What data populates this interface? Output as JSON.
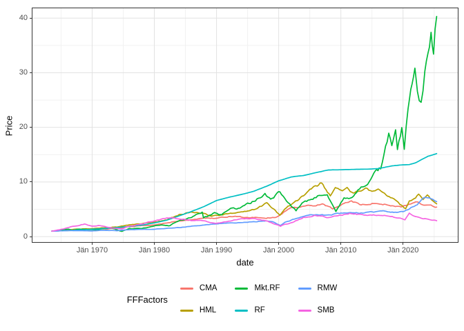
{
  "figure": {
    "background": "#ffffff",
    "panel_border_color": "#333333",
    "grid_major_color": "#e2e2e2",
    "grid_minor_color": "#f1f1f1",
    "tick_label_color": "#4d4d4d"
  },
  "chart_data": {
    "type": "line",
    "title": "",
    "xlabel": "date",
    "ylabel": "Price",
    "legend_title": "FFFactors",
    "legend_position": "bottom",
    "grid": true,
    "x_axis": {
      "tick_labels": [
        "Jän 1970",
        "Jän 1980",
        "Jän 1990",
        "Jän 2000",
        "Jän 2010",
        "Jän 2020"
      ],
      "tick_years": [
        1970,
        1980,
        1990,
        2000,
        2010,
        2020
      ],
      "minor_years": [
        1965,
        1975,
        1985,
        1995,
        2005,
        2015,
        2025
      ],
      "lim": [
        1960.4,
        2028.8
      ]
    },
    "y_axis": {
      "tick_labels": [
        "0",
        "10",
        "20",
        "30",
        "40"
      ],
      "tick_values": [
        0,
        10,
        20,
        30,
        40
      ],
      "minor_values": [
        5,
        15,
        25,
        35
      ],
      "lim": [
        -1.0,
        41.8
      ]
    },
    "series": [
      {
        "name": "CMA",
        "color": "#F8766D",
        "volatility": 0.02,
        "points": [
          [
            1963.5,
            1.0
          ],
          [
            1965,
            1.05
          ],
          [
            1966,
            1.1
          ],
          [
            1968,
            1.3
          ],
          [
            1970,
            1.3
          ],
          [
            1972,
            1.4
          ],
          [
            1974,
            1.5
          ],
          [
            1976,
            1.8
          ],
          [
            1978,
            2.0
          ],
          [
            1980,
            2.1
          ],
          [
            1982,
            2.5
          ],
          [
            1984,
            2.9
          ],
          [
            1986,
            3.1
          ],
          [
            1988,
            3.4
          ],
          [
            1990,
            3.3
          ],
          [
            1992,
            3.7
          ],
          [
            1994,
            3.6
          ],
          [
            1996,
            3.5
          ],
          [
            1998,
            3.4
          ],
          [
            1999.5,
            3.5
          ],
          [
            2000.5,
            4.2
          ],
          [
            2001.5,
            5.0
          ],
          [
            2002.5,
            5.4
          ],
          [
            2004,
            5.5
          ],
          [
            2006,
            5.7
          ],
          [
            2007.3,
            5.9
          ],
          [
            2008.7,
            5.1
          ],
          [
            2010,
            5.9
          ],
          [
            2011.7,
            6.5
          ],
          [
            2013,
            5.9
          ],
          [
            2014.5,
            6.0
          ],
          [
            2016,
            6.1
          ],
          [
            2018,
            5.7
          ],
          [
            2019.7,
            5.3
          ],
          [
            2021,
            5.9
          ],
          [
            2022.3,
            6.3
          ],
          [
            2023.3,
            5.6
          ],
          [
            2024,
            5.8
          ],
          [
            2025.4,
            5.4
          ]
        ]
      },
      {
        "name": "HML",
        "color": "#B79F00",
        "volatility": 0.022,
        "points": [
          [
            1963.5,
            1.0
          ],
          [
            1965,
            1.15
          ],
          [
            1966,
            1.25
          ],
          [
            1968,
            1.35
          ],
          [
            1970,
            1.45
          ],
          [
            1972,
            1.65
          ],
          [
            1974,
            1.75
          ],
          [
            1976,
            2.15
          ],
          [
            1978,
            2.35
          ],
          [
            1980,
            2.7
          ],
          [
            1982,
            3.0
          ],
          [
            1984,
            4.0
          ],
          [
            1986,
            4.5
          ],
          [
            1988,
            4.2
          ],
          [
            1989.2,
            3.7
          ],
          [
            1991,
            4.0
          ],
          [
            1993,
            4.3
          ],
          [
            1995,
            4.7
          ],
          [
            1996.5,
            5.1
          ],
          [
            1998.1,
            6.2
          ],
          [
            1999.2,
            5.0
          ],
          [
            2000.2,
            3.9
          ],
          [
            2001.5,
            5.6
          ],
          [
            2003,
            6.6
          ],
          [
            2005,
            8.5
          ],
          [
            2006.9,
            9.8
          ],
          [
            2008.3,
            7.6
          ],
          [
            2009.1,
            8.8
          ],
          [
            2010,
            8.3
          ],
          [
            2011,
            8.7
          ],
          [
            2012,
            7.8
          ],
          [
            2013,
            8.4
          ],
          [
            2014,
            8.7
          ],
          [
            2015,
            8.1
          ],
          [
            2016,
            8.4
          ],
          [
            2017,
            8.0
          ],
          [
            2018,
            7.3
          ],
          [
            2019,
            6.3
          ],
          [
            2020.4,
            5.0
          ],
          [
            2021,
            6.4
          ],
          [
            2022.5,
            7.7
          ],
          [
            2023.2,
            6.6
          ],
          [
            2023.9,
            7.4
          ],
          [
            2024.6,
            6.7
          ],
          [
            2025.4,
            6.0
          ]
        ]
      },
      {
        "name": "Mkt.RF",
        "color": "#00BA38",
        "volatility": 0.03,
        "points": [
          [
            1963.5,
            1.0
          ],
          [
            1965,
            1.2
          ],
          [
            1966.2,
            1.35
          ],
          [
            1966.8,
            1.15
          ],
          [
            1968,
            1.4
          ],
          [
            1970.5,
            1.2
          ],
          [
            1972.9,
            1.65
          ],
          [
            1974.8,
            0.95
          ],
          [
            1976,
            1.45
          ],
          [
            1978,
            1.5
          ],
          [
            1980.9,
            2.1
          ],
          [
            1982.5,
            2.0
          ],
          [
            1983.5,
            2.6
          ],
          [
            1985,
            3.2
          ],
          [
            1987.7,
            4.4
          ],
          [
            1987.9,
            3.4
          ],
          [
            1989.7,
            4.4
          ],
          [
            1990.8,
            3.9
          ],
          [
            1992,
            5.0
          ],
          [
            1994,
            5.3
          ],
          [
            1996,
            6.6
          ],
          [
            1997.8,
            7.7
          ],
          [
            1998.7,
            6.9
          ],
          [
            2000.2,
            8.3
          ],
          [
            2001,
            6.7
          ],
          [
            2002.8,
            4.7
          ],
          [
            2004,
            6.3
          ],
          [
            2006,
            7.2
          ],
          [
            2007.8,
            8.0
          ],
          [
            2009.2,
            4.6
          ],
          [
            2010,
            6.3
          ],
          [
            2010.5,
            7.2
          ],
          [
            2011.8,
            7.0
          ],
          [
            2013,
            8.7
          ],
          [
            2014.3,
            9.4
          ],
          [
            2015.3,
            12.2
          ],
          [
            2016.4,
            12.6
          ],
          [
            2017.7,
            18.6
          ],
          [
            2018.2,
            17.1
          ],
          [
            2018.8,
            19.2
          ],
          [
            2019.1,
            16.1
          ],
          [
            2019.8,
            20.3
          ],
          [
            2020.2,
            16.7
          ],
          [
            2020.8,
            24.3
          ],
          [
            2021.9,
            31.5
          ],
          [
            2022.3,
            26.2
          ],
          [
            2022.9,
            24.0
          ],
          [
            2023.5,
            29.5
          ],
          [
            2024.5,
            36.9
          ],
          [
            2024.9,
            33.3
          ],
          [
            2025.4,
            40.3
          ]
        ]
      },
      {
        "name": "RF",
        "color": "#00BFC4",
        "volatility": 0.001,
        "points": [
          [
            1963.5,
            1.0
          ],
          [
            1966,
            1.1
          ],
          [
            1968,
            1.2
          ],
          [
            1970,
            1.35
          ],
          [
            1972,
            1.5
          ],
          [
            1974,
            1.65
          ],
          [
            1976,
            1.85
          ],
          [
            1978,
            2.1
          ],
          [
            1980,
            2.5
          ],
          [
            1982,
            3.0
          ],
          [
            1984,
            3.8
          ],
          [
            1986,
            4.6
          ],
          [
            1988,
            5.5
          ],
          [
            1990,
            6.6
          ],
          [
            1992,
            7.2
          ],
          [
            1994,
            7.7
          ],
          [
            1996,
            8.3
          ],
          [
            1998,
            9.2
          ],
          [
            2000,
            10.2
          ],
          [
            2002,
            10.9
          ],
          [
            2004,
            11.2
          ],
          [
            2006,
            11.7
          ],
          [
            2008,
            12.2
          ],
          [
            2010,
            12.25
          ],
          [
            2012,
            12.3
          ],
          [
            2014,
            12.35
          ],
          [
            2016,
            12.45
          ],
          [
            2018,
            12.9
          ],
          [
            2019.5,
            13.1
          ],
          [
            2021,
            13.2
          ],
          [
            2022,
            13.5
          ],
          [
            2023,
            14.1
          ],
          [
            2024,
            14.7
          ],
          [
            2025.4,
            15.2
          ]
        ]
      },
      {
        "name": "RMW",
        "color": "#619CFF",
        "volatility": 0.018,
        "points": [
          [
            1963.5,
            1.0
          ],
          [
            1966,
            1.1
          ],
          [
            1968,
            1.1
          ],
          [
            1970,
            1.05
          ],
          [
            1972,
            1.15
          ],
          [
            1974,
            1.1
          ],
          [
            1976,
            1.25
          ],
          [
            1978,
            1.3
          ],
          [
            1980,
            1.35
          ],
          [
            1982,
            1.5
          ],
          [
            1984,
            1.65
          ],
          [
            1986,
            1.9
          ],
          [
            1988,
            2.1
          ],
          [
            1990,
            2.3
          ],
          [
            1992,
            2.5
          ],
          [
            1994,
            2.6
          ],
          [
            1996,
            2.7
          ],
          [
            1998,
            2.9
          ],
          [
            1999.3,
            2.6
          ],
          [
            2000.3,
            2.0
          ],
          [
            2001,
            2.6
          ],
          [
            2002,
            3.0
          ],
          [
            2004,
            3.8
          ],
          [
            2006,
            4.0
          ],
          [
            2008,
            3.9
          ],
          [
            2009.5,
            4.2
          ],
          [
            2011,
            4.4
          ],
          [
            2013,
            4.3
          ],
          [
            2015,
            4.5
          ],
          [
            2016.8,
            4.6
          ],
          [
            2018,
            4.4
          ],
          [
            2020,
            4.6
          ],
          [
            2021,
            5.1
          ],
          [
            2022.3,
            6.0
          ],
          [
            2023.2,
            7.0
          ],
          [
            2024.2,
            7.2
          ],
          [
            2024.8,
            6.8
          ],
          [
            2025.4,
            6.4
          ]
        ]
      },
      {
        "name": "SMB",
        "color": "#F564E2",
        "volatility": 0.022,
        "points": [
          [
            1963.5,
            1.0
          ],
          [
            1965,
            1.3
          ],
          [
            1967,
            1.9
          ],
          [
            1968.8,
            2.3
          ],
          [
            1970,
            1.9
          ],
          [
            1971,
            2.0
          ],
          [
            1973,
            1.6
          ],
          [
            1974.8,
            1.4
          ],
          [
            1976,
            1.9
          ],
          [
            1978,
            2.3
          ],
          [
            1980,
            2.9
          ],
          [
            1981.5,
            3.3
          ],
          [
            1983,
            3.5
          ],
          [
            1984,
            3.2
          ],
          [
            1986,
            3.0
          ],
          [
            1988,
            2.9
          ],
          [
            1990,
            2.4
          ],
          [
            1992,
            2.9
          ],
          [
            1994,
            3.2
          ],
          [
            1996,
            3.3
          ],
          [
            1998,
            2.9
          ],
          [
            2000.3,
            1.9
          ],
          [
            2001,
            2.3
          ],
          [
            2002,
            2.5
          ],
          [
            2004,
            3.5
          ],
          [
            2006,
            3.9
          ],
          [
            2008,
            3.5
          ],
          [
            2010,
            3.9
          ],
          [
            2011.4,
            4.2
          ],
          [
            2013,
            4.0
          ],
          [
            2015,
            3.9
          ],
          [
            2017,
            3.9
          ],
          [
            2019,
            3.5
          ],
          [
            2020.3,
            3.1
          ],
          [
            2021,
            4.2
          ],
          [
            2022,
            3.6
          ],
          [
            2023,
            3.3
          ],
          [
            2024,
            3.2
          ],
          [
            2025.4,
            2.9
          ]
        ]
      }
    ]
  }
}
